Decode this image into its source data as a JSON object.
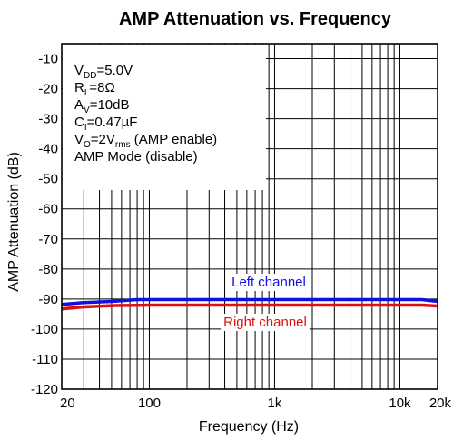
{
  "chart_data": {
    "type": "line",
    "title": "AMP Attenuation vs. Frequency",
    "xlabel": "Frequency (Hz)",
    "ylabel": "AMP Attenuation (dB)",
    "x_scale": "log",
    "xlim": [
      20,
      20000
    ],
    "ylim": [
      -120,
      -5
    ],
    "y_ticks": [
      -10,
      -20,
      -30,
      -40,
      -50,
      -60,
      -70,
      -80,
      -90,
      -100,
      -110,
      -120
    ],
    "y_tick_labels": [
      "-10",
      "-20",
      "-30",
      "-40",
      "-50",
      "-60",
      "-70",
      "-80",
      "-90",
      "-100",
      "-110",
      "-120"
    ],
    "x_ticks": [
      20,
      100,
      1000,
      10000,
      20000
    ],
    "x_tick_labels": [
      "20",
      "100",
      "1k",
      "10k",
      "20k"
    ],
    "grid": true,
    "conditions": [
      {
        "main": "V",
        "sub": "DD",
        "rest": "=5.0V"
      },
      {
        "main": "R",
        "sub": "L",
        "rest": "=8Ω"
      },
      {
        "main": "A",
        "sub": "V",
        "rest": "=10dB"
      },
      {
        "main": "C",
        "sub": "I",
        "rest": "=0.47µF"
      },
      {
        "main": "V",
        "sub": "O",
        "rest": "=2V",
        "sub2": "rms",
        "rest2": " (AMP enable)"
      },
      {
        "main": "AMP Mode (disable)",
        "sub": "",
        "rest": ""
      }
    ],
    "series": [
      {
        "name": "Left channel",
        "color": "#1010e0",
        "x": [
          20,
          30,
          50,
          80,
          100,
          200,
          500,
          1000,
          2000,
          5000,
          10000,
          15000,
          20000
        ],
        "y": [
          -91.8,
          -91.2,
          -90.8,
          -90.2,
          -90.2,
          -90.2,
          -90.2,
          -90.2,
          -90.2,
          -90.2,
          -90.2,
          -90.2,
          -90.8
        ]
      },
      {
        "name": "Right channel",
        "color": "#e01010",
        "x": [
          20,
          30,
          50,
          80,
          100,
          200,
          500,
          1000,
          2000,
          5000,
          10000,
          15000,
          20000
        ],
        "y": [
          -93.3,
          -92.6,
          -92.2,
          -92.1,
          -92.0,
          -92.0,
          -92.0,
          -92.0,
          -92.0,
          -92.0,
          -92.0,
          -92.0,
          -92.3
        ]
      }
    ]
  }
}
